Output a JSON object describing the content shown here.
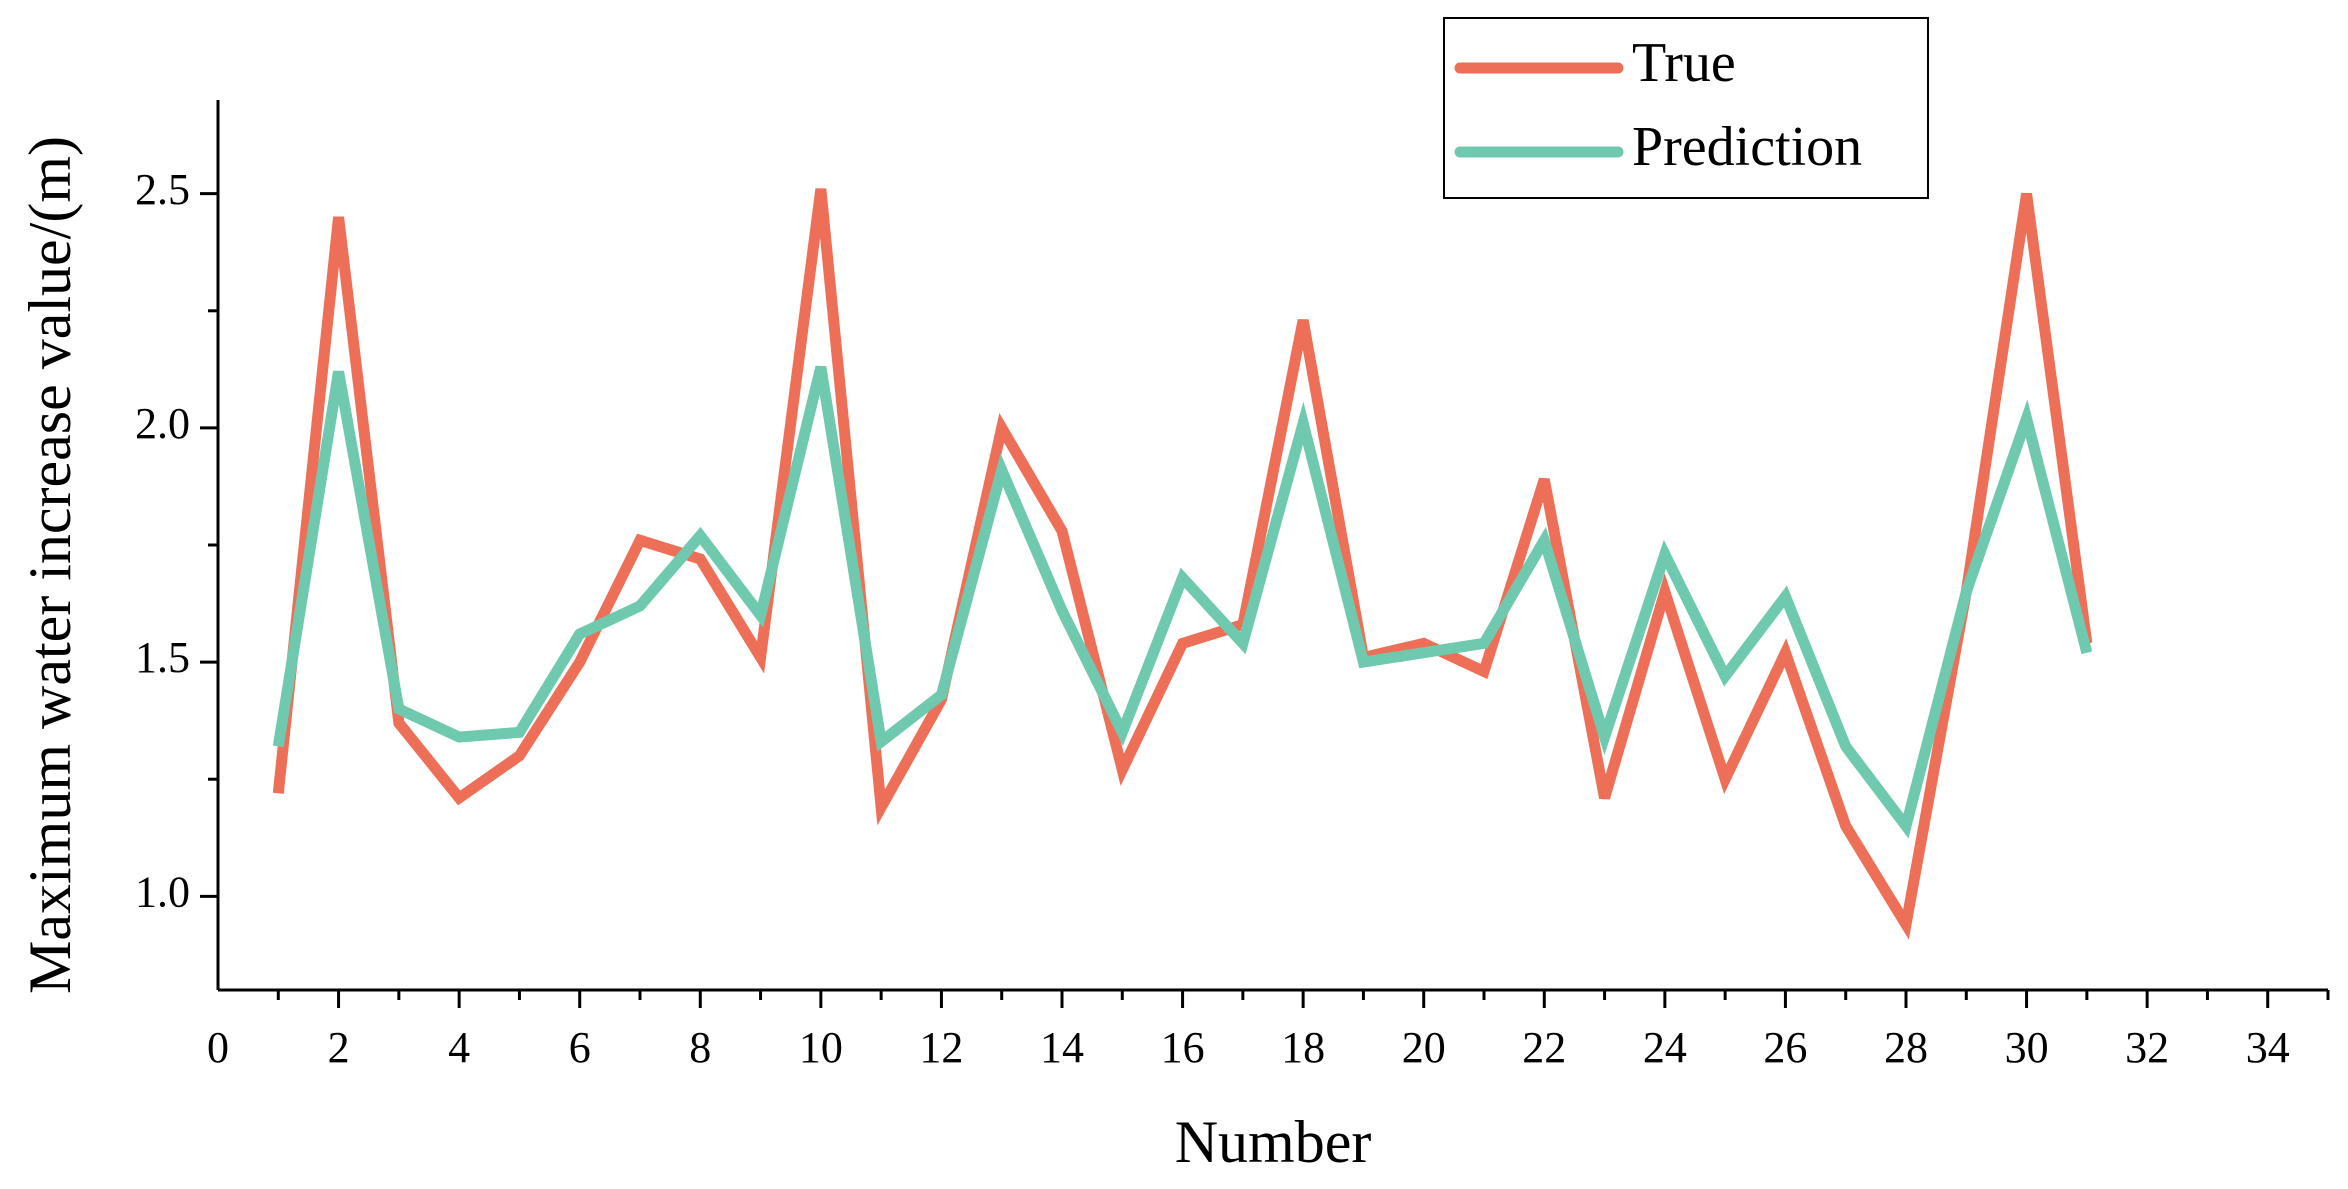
{
  "chart_data": {
    "type": "line",
    "xlabel": "Number",
    "ylabel": "Maximum water increase value/(m)",
    "xlim": [
      0,
      35
    ],
    "ylim": [
      0.8,
      2.7
    ],
    "x_ticks": [
      0,
      2,
      4,
      6,
      8,
      10,
      12,
      14,
      16,
      18,
      20,
      22,
      24,
      26,
      28,
      30,
      32,
      34
    ],
    "y_ticks": [
      1.0,
      1.5,
      2.0,
      2.5
    ],
    "x_tick_labels": [
      "0",
      "2",
      "4",
      "6",
      "8",
      "10",
      "12",
      "14",
      "16",
      "18",
      "20",
      "22",
      "24",
      "26",
      "28",
      "30",
      "32",
      "34"
    ],
    "y_tick_labels": [
      "1.0",
      "1.5",
      "2.0",
      "2.5"
    ],
    "legend_position": "top-right",
    "grid": false,
    "x": [
      1,
      2,
      3,
      4,
      5,
      6,
      7,
      8,
      9,
      10,
      11,
      12,
      13,
      14,
      15,
      16,
      17,
      18,
      19,
      20,
      21,
      22,
      23,
      24,
      25,
      26,
      27,
      28,
      29,
      30,
      31
    ],
    "series": [
      {
        "name": "True",
        "color": "#EE6F57",
        "values": [
          1.22,
          2.45,
          1.37,
          1.21,
          1.3,
          1.5,
          1.76,
          1.72,
          1.51,
          2.51,
          1.19,
          1.42,
          2.0,
          1.78,
          1.27,
          1.54,
          1.58,
          2.23,
          1.51,
          1.54,
          1.48,
          1.89,
          1.21,
          1.65,
          1.25,
          1.52,
          1.15,
          0.94,
          1.65,
          2.5,
          1.54
        ]
      },
      {
        "name": "Prediction",
        "color": "#6FC9AE",
        "values": [
          1.32,
          2.12,
          1.4,
          1.34,
          1.35,
          1.56,
          1.62,
          1.77,
          1.6,
          2.13,
          1.33,
          1.43,
          1.91,
          1.61,
          1.35,
          1.68,
          1.54,
          2.01,
          1.5,
          1.52,
          1.54,
          1.76,
          1.34,
          1.73,
          1.47,
          1.64,
          1.32,
          1.15,
          1.65,
          2.02,
          1.52
        ]
      }
    ]
  }
}
